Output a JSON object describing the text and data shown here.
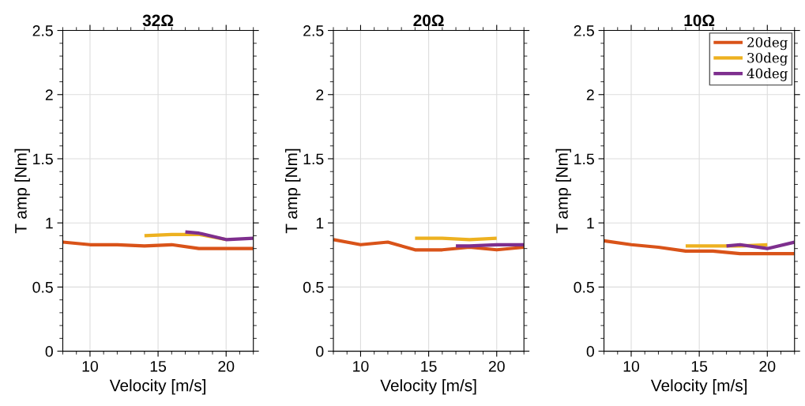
{
  "chart_data": [
    {
      "type": "line",
      "title": "32Ω",
      "xlabel": "Velocity [m/s]",
      "ylabel": "T amp [Nm]",
      "xlim": [
        8,
        22
      ],
      "xticks": [
        10,
        15,
        20
      ],
      "ylim": [
        0,
        2.5
      ],
      "yticks": [
        0,
        0.5,
        1,
        1.5,
        2,
        2.5
      ],
      "grid": true,
      "legend": false,
      "series": [
        {
          "color": "#d95319",
          "x": [
            8,
            10,
            12,
            14,
            16,
            18,
            20,
            22
          ],
          "values": [
            0.85,
            0.83,
            0.83,
            0.82,
            0.83,
            0.8,
            0.8,
            0.8
          ]
        },
        {
          "color": "#edb120",
          "x": [
            14,
            16,
            18,
            20
          ],
          "values": [
            0.9,
            0.91,
            0.91,
            0.87
          ]
        },
        {
          "color": "#7e2f8e",
          "x": [
            17,
            18,
            20,
            22
          ],
          "values": [
            0.93,
            0.92,
            0.87,
            0.88
          ]
        }
      ]
    },
    {
      "type": "line",
      "title": "20Ω",
      "xlabel": "Velocity [m/s]",
      "ylabel": "T amp [Nm]",
      "xlim": [
        8,
        22
      ],
      "xticks": [
        10,
        15,
        20
      ],
      "ylim": [
        0,
        2.5
      ],
      "yticks": [
        0,
        0.5,
        1,
        1.5,
        2,
        2.5
      ],
      "grid": true,
      "legend": false,
      "series": [
        {
          "color": "#d95319",
          "x": [
            8,
            10,
            12,
            14,
            16,
            18,
            20,
            22
          ],
          "values": [
            0.87,
            0.83,
            0.85,
            0.79,
            0.79,
            0.81,
            0.79,
            0.81
          ]
        },
        {
          "color": "#edb120",
          "x": [
            14,
            16,
            18,
            20
          ],
          "values": [
            0.88,
            0.88,
            0.87,
            0.88
          ]
        },
        {
          "color": "#7e2f8e",
          "x": [
            17,
            18,
            20,
            22
          ],
          "values": [
            0.82,
            0.82,
            0.83,
            0.83
          ]
        }
      ]
    },
    {
      "type": "line",
      "title": "10Ω",
      "xlabel": "Velocity [m/s]",
      "ylabel": "T amp [Nm]",
      "xlim": [
        8,
        22
      ],
      "xticks": [
        10,
        15,
        20
      ],
      "ylim": [
        0,
        2.5
      ],
      "yticks": [
        0,
        0.5,
        1,
        1.5,
        2,
        2.5
      ],
      "grid": true,
      "legend": "top right",
      "series": [
        {
          "name": "20deg",
          "color": "#d95319",
          "x": [
            8,
            10,
            12,
            14,
            16,
            18,
            20,
            22
          ],
          "values": [
            0.86,
            0.83,
            0.81,
            0.78,
            0.78,
            0.76,
            0.76,
            0.76
          ]
        },
        {
          "name": "30deg",
          "color": "#edb120",
          "x": [
            14,
            16,
            18,
            20
          ],
          "values": [
            0.82,
            0.82,
            0.82,
            0.83
          ]
        },
        {
          "name": "40deg",
          "color": "#7e2f8e",
          "x": [
            17,
            18,
            20,
            22
          ],
          "values": [
            0.82,
            0.83,
            0.8,
            0.85
          ]
        }
      ]
    }
  ]
}
